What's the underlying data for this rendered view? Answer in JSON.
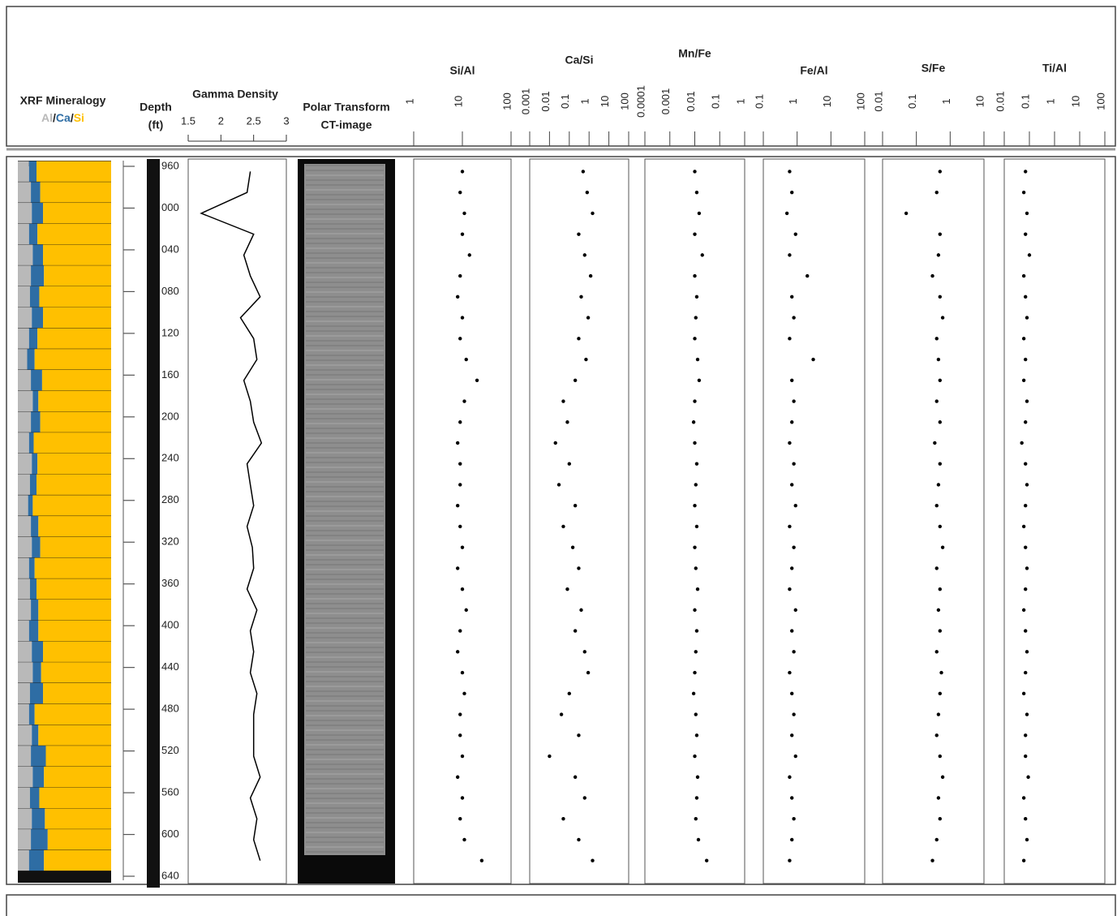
{
  "chart_data": [
    {
      "type": "mineralogy",
      "title": "XRF Mineralogy",
      "legend_separator": "/",
      "y": [
        965,
        985,
        1005,
        1025,
        1045,
        1065,
        1085,
        1105,
        1125,
        1145,
        1165,
        1185,
        1205,
        1225,
        1245,
        1265,
        1285,
        1305,
        1325,
        1345,
        1365,
        1385,
        1405,
        1425,
        1445,
        1465,
        1485,
        1505,
        1525,
        1545,
        1565,
        1585,
        1605,
        1625
      ],
      "xlim": [
        0,
        100
      ],
      "series": [
        {
          "name": "Al",
          "color": "#b9b9b9",
          "values": [
            12,
            14,
            15,
            12,
            16,
            14,
            13,
            15,
            12,
            10,
            14,
            16,
            14,
            12,
            15,
            13,
            11,
            14,
            15,
            12,
            13,
            14,
            12,
            15,
            16,
            13,
            12,
            15,
            14,
            16,
            13,
            15,
            14,
            12
          ]
        },
        {
          "name": "Ca",
          "color": "#2e6da4",
          "values": [
            8,
            10,
            12,
            9,
            11,
            14,
            10,
            12,
            9,
            8,
            12,
            6,
            10,
            5,
            6,
            7,
            5,
            8,
            9,
            6,
            7,
            8,
            10,
            12,
            9,
            14,
            6,
            7,
            16,
            12,
            10,
            14,
            18,
            16
          ]
        },
        {
          "name": "Si",
          "color": "#ffc000",
          "values": [
            80,
            76,
            73,
            79,
            73,
            72,
            77,
            73,
            79,
            82,
            74,
            78,
            76,
            83,
            79,
            80,
            84,
            78,
            76,
            82,
            80,
            78,
            78,
            73,
            75,
            73,
            82,
            78,
            70,
            72,
            77,
            71,
            68,
            72
          ]
        }
      ]
    },
    {
      "type": "depth-axis",
      "title": "Depth",
      "unit": "(ft)",
      "ylim": [
        960,
        1640
      ],
      "yticks": [
        960,
        {
          "value": 1000,
          "label": "000"
        },
        {
          "value": 1040,
          "label": "040"
        },
        {
          "value": 1080,
          "label": "080"
        },
        {
          "value": 1120,
          "label": "120"
        },
        {
          "value": 1160,
          "label": "160"
        },
        {
          "value": 1200,
          "label": "200"
        },
        {
          "value": 1240,
          "label": "240"
        },
        {
          "value": 1280,
          "label": "280"
        },
        {
          "value": 1320,
          "label": "320"
        },
        {
          "value": 1360,
          "label": "360"
        },
        {
          "value": 1400,
          "label": "400"
        },
        {
          "value": 1440,
          "label": "440"
        },
        {
          "value": 1480,
          "label": "480"
        },
        {
          "value": 1520,
          "label": "520"
        },
        {
          "value": 1560,
          "label": "560"
        },
        {
          "value": 1600,
          "label": "600"
        },
        {
          "value": 1640,
          "label": "640"
        }
      ]
    },
    {
      "type": "line",
      "title": "Gamma Density",
      "xlim": [
        1.5,
        3
      ],
      "xticks": [
        1.5,
        2,
        2.5,
        3
      ],
      "color": "#000000",
      "y": [
        965,
        985,
        1005,
        1025,
        1045,
        1065,
        1085,
        1105,
        1125,
        1145,
        1165,
        1185,
        1205,
        1225,
        1245,
        1265,
        1285,
        1305,
        1325,
        1345,
        1365,
        1385,
        1405,
        1425,
        1445,
        1465,
        1485,
        1505,
        1525,
        1545,
        1565,
        1585,
        1605,
        1625
      ],
      "values": [
        2.45,
        2.4,
        1.7,
        2.5,
        2.35,
        2.45,
        2.6,
        2.3,
        2.5,
        2.55,
        2.35,
        2.45,
        2.5,
        2.62,
        2.4,
        2.45,
        2.5,
        2.4,
        2.48,
        2.5,
        2.4,
        2.55,
        2.45,
        2.5,
        2.45,
        2.55,
        2.5,
        2.5,
        2.5,
        2.6,
        2.45,
        2.55,
        2.5,
        2.6
      ]
    },
    {
      "type": "image",
      "title": [
        "Polar Transform",
        "CT-image"
      ]
    },
    {
      "type": "scatter",
      "title": "Si/Al",
      "xscale": "log",
      "xlim": [
        1,
        100
      ],
      "xticks": [
        1,
        10,
        100
      ],
      "color": "#000000",
      "y": [
        965,
        985,
        1005,
        1025,
        1045,
        1065,
        1085,
        1105,
        1125,
        1145,
        1165,
        1185,
        1205,
        1225,
        1245,
        1265,
        1285,
        1305,
        1325,
        1345,
        1365,
        1385,
        1405,
        1425,
        1445,
        1465,
        1485,
        1505,
        1525,
        1545,
        1565,
        1585,
        1605,
        1625
      ],
      "values": [
        10,
        9,
        11,
        10,
        14,
        9,
        8,
        10,
        9,
        12,
        20,
        11,
        9,
        8,
        9,
        9,
        8,
        9,
        10,
        8,
        10,
        12,
        9,
        8,
        10,
        11,
        9,
        9,
        10,
        8,
        10,
        9,
        11,
        25
      ]
    },
    {
      "type": "scatter",
      "title": "Ca/Si",
      "xscale": "log",
      "xlim": [
        0.001,
        100
      ],
      "xticks": [
        0.001,
        0.01,
        0.1,
        1,
        10,
        100
      ],
      "color": "#000000",
      "y": [
        965,
        985,
        1005,
        1025,
        1045,
        1065,
        1085,
        1105,
        1125,
        1145,
        1165,
        1185,
        1205,
        1225,
        1245,
        1265,
        1285,
        1305,
        1325,
        1345,
        1365,
        1385,
        1405,
        1425,
        1445,
        1465,
        1485,
        1505,
        1525,
        1545,
        1565,
        1585,
        1605,
        1625
      ],
      "values": [
        0.5,
        0.8,
        1.5,
        0.3,
        0.6,
        1.2,
        0.4,
        0.9,
        0.3,
        0.7,
        0.2,
        0.05,
        0.08,
        0.02,
        0.1,
        0.03,
        0.2,
        0.05,
        0.15,
        0.3,
        0.08,
        0.4,
        0.2,
        0.6,
        0.9,
        0.1,
        0.04,
        0.3,
        0.01,
        0.2,
        0.6,
        0.05,
        0.3,
        1.5
      ]
    },
    {
      "type": "scatter",
      "title": "Mn/Fe",
      "xscale": "log",
      "xlim": [
        0.0001,
        1
      ],
      "xticks": [
        0.0001,
        0.001,
        0.01,
        0.1,
        1
      ],
      "color": "#000000",
      "y": [
        965,
        985,
        1005,
        1025,
        1045,
        1065,
        1085,
        1105,
        1125,
        1145,
        1165,
        1185,
        1205,
        1225,
        1245,
        1265,
        1285,
        1305,
        1325,
        1345,
        1365,
        1385,
        1405,
        1425,
        1445,
        1465,
        1485,
        1505,
        1525,
        1545,
        1565,
        1585,
        1605,
        1625
      ],
      "values": [
        0.01,
        0.012,
        0.015,
        0.01,
        0.02,
        0.01,
        0.012,
        0.011,
        0.01,
        0.013,
        0.015,
        0.01,
        0.009,
        0.01,
        0.012,
        0.011,
        0.01,
        0.012,
        0.01,
        0.011,
        0.013,
        0.01,
        0.012,
        0.011,
        0.01,
        0.009,
        0.011,
        0.012,
        0.01,
        0.013,
        0.012,
        0.011,
        0.014,
        0.03
      ]
    },
    {
      "type": "scatter",
      "title": "Fe/Al",
      "xscale": "log",
      "xlim": [
        0.1,
        100
      ],
      "xticks": [
        0.1,
        1,
        10,
        100
      ],
      "color": "#000000",
      "y": [
        965,
        985,
        1005,
        1025,
        1045,
        1065,
        1085,
        1105,
        1125,
        1145,
        1165,
        1185,
        1205,
        1225,
        1245,
        1265,
        1285,
        1305,
        1325,
        1345,
        1365,
        1385,
        1405,
        1425,
        1445,
        1465,
        1485,
        1505,
        1525,
        1545,
        1565,
        1585,
        1605,
        1625
      ],
      "values": [
        0.6,
        0.7,
        0.5,
        0.9,
        0.6,
        2,
        0.7,
        0.8,
        0.6,
        3,
        0.7,
        0.8,
        0.7,
        0.6,
        0.8,
        0.7,
        0.9,
        0.6,
        0.8,
        0.7,
        0.6,
        0.9,
        0.7,
        0.8,
        0.6,
        0.7,
        0.8,
        0.7,
        0.9,
        0.6,
        0.7,
        0.8,
        0.7,
        0.6
      ]
    },
    {
      "type": "scatter",
      "title": "S/Fe",
      "xscale": "log",
      "xlim": [
        0.01,
        10
      ],
      "xticks": [
        0.01,
        0.1,
        1,
        10
      ],
      "color": "#000000",
      "y": [
        965,
        985,
        1005,
        1025,
        1045,
        1065,
        1085,
        1105,
        1125,
        1145,
        1165,
        1185,
        1205,
        1225,
        1245,
        1265,
        1285,
        1305,
        1325,
        1345,
        1365,
        1385,
        1405,
        1425,
        1445,
        1465,
        1485,
        1505,
        1525,
        1545,
        1565,
        1585,
        1605,
        1625
      ],
      "values": [
        0.5,
        0.4,
        0.05,
        0.5,
        0.45,
        0.3,
        0.5,
        0.6,
        0.4,
        0.45,
        0.5,
        0.4,
        0.5,
        0.35,
        0.5,
        0.45,
        0.4,
        0.5,
        0.6,
        0.4,
        0.5,
        0.45,
        0.5,
        0.4,
        0.55,
        0.5,
        0.45,
        0.4,
        0.5,
        0.6,
        0.45,
        0.5,
        0.4,
        0.3
      ]
    },
    {
      "type": "scatter",
      "title": "Ti/Al",
      "xscale": "log",
      "xlim": [
        0.01,
        100
      ],
      "xticks": [
        0.01,
        0.1,
        1,
        10,
        100
      ],
      "color": "#000000",
      "y": [
        965,
        985,
        1005,
        1025,
        1045,
        1065,
        1085,
        1105,
        1125,
        1145,
        1165,
        1185,
        1205,
        1225,
        1245,
        1265,
        1285,
        1305,
        1325,
        1345,
        1365,
        1385,
        1405,
        1425,
        1445,
        1465,
        1485,
        1505,
        1525,
        1545,
        1565,
        1585,
        1605,
        1625
      ],
      "values": [
        0.07,
        0.06,
        0.08,
        0.07,
        0.1,
        0.06,
        0.07,
        0.08,
        0.06,
        0.07,
        0.06,
        0.08,
        0.07,
        0.05,
        0.07,
        0.08,
        0.07,
        0.06,
        0.07,
        0.08,
        0.07,
        0.06,
        0.07,
        0.08,
        0.07,
        0.06,
        0.08,
        0.07,
        0.07,
        0.09,
        0.06,
        0.07,
        0.08,
        0.06
      ]
    }
  ]
}
